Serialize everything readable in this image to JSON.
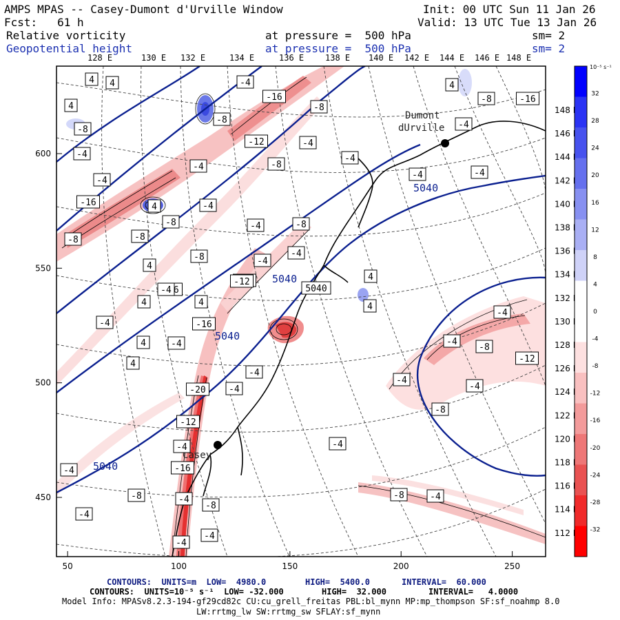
{
  "header": {
    "title": "AMPS MPAS -- Casey-Dumont d'Urville Window",
    "init": "Init: 00 UTC Sun 11 Jan 26",
    "fcst": "Fcst:   61 h",
    "valid": "Valid: 13 UTC Tue 13 Jan 26",
    "field1_name": "Relative vorticity",
    "field1_level": "at pressure =  500 hPa",
    "field1_sm": "sm= 2",
    "field2_name": "Geopotential height",
    "field2_level": "at pressure =  500 hPa",
    "field2_sm": "sm= 2"
  },
  "top_lon_labels": [
    "128 E",
    "130 E",
    "132 E",
    "134 E",
    "136 E",
    "138 E",
    "140 E",
    "142 E",
    "144 E",
    "146 E",
    "148 E"
  ],
  "right_lon_labels": [
    "148 E",
    "146 E",
    "144 E",
    "142 E",
    "140 E",
    "138 E",
    "136 E",
    "134 E",
    "132 E",
    "130 E",
    "128 E",
    "126 E",
    "124 E",
    "122 E",
    "120 E",
    "118 E",
    "116 E",
    "114 E",
    "112 E"
  ],
  "x_axis": {
    "ticks": [
      "50",
      "100",
      "150",
      "200",
      "250"
    ],
    "values": [
      50,
      100,
      150,
      200,
      250
    ]
  },
  "y_axis": {
    "ticks": [
      "600",
      "550",
      "500",
      "450"
    ],
    "values": [
      600,
      550,
      500,
      450
    ]
  },
  "colorbar": {
    "unit": "10⁻⁵ s⁻¹",
    "labels": [
      "32",
      "28",
      "24",
      "20",
      "16",
      "12",
      "8",
      "4",
      "0",
      "-4",
      "-8",
      "-12",
      "-16",
      "-20",
      "-24",
      "-28",
      "-32"
    ],
    "colors": {
      "max_blue": "#0000ff",
      "max_red": "#ff0000",
      "neutral": "#ffffff"
    }
  },
  "stations": {
    "dumont_label": "Dumont",
    "dumont_label2": "dUrville",
    "casey_label": "Casey"
  },
  "height_contour_labels": [
    "5040",
    "5040",
    "5040",
    "5040"
  ],
  "vorticity_labels": [
    "4",
    "4",
    "-8",
    "-4",
    "4",
    "-4",
    "-16",
    "-8",
    "-8",
    "4",
    "-8",
    "4",
    "-16",
    "-4",
    "-4",
    "-4",
    "-8",
    "4",
    "4",
    "4",
    "-4",
    "4",
    "-4",
    "-12",
    "-4",
    "-8",
    "-16",
    "-12",
    "-4",
    "-8",
    "-8",
    "-4",
    "-8",
    "-4",
    "-4",
    "-4",
    "-12",
    "5040",
    "4",
    "4",
    "-4",
    "-4",
    "-4",
    "4",
    "-8",
    "-16",
    "-4",
    "-4",
    "-4",
    "-8",
    "-12",
    "-4",
    "-4",
    "-8",
    "-4",
    "-20",
    "-4",
    "-4",
    "-16",
    "-12",
    "-4",
    "-16",
    "-4",
    "-8",
    "-4",
    "-4",
    "-8",
    "-4",
    "-4",
    "-8",
    "-4"
  ],
  "footer": {
    "line1_a": "CONTOURS:  UNITS=m  LOW=  4980.0",
    "line1_b": "HIGH=  5400.0",
    "line1_c": "INTERVAL=  60.000",
    "line2_a": "CONTOURS:  UNITS=10⁻⁵ s⁻¹  LOW= -32.000",
    "line2_b": "HIGH=  32.000",
    "line2_c": "INTERVAL=   4.0000",
    "line3": "Model Info: MPASv8.2.3-194-gf29cd82c CU:cu_grell_freitas PBL:bl_mynn MP:mp_thompson SF:sf_noahmp 8.0",
    "line4": "LW:rrtmg_lw SW:rrtmg_sw SFLAY:sf_mynn"
  }
}
